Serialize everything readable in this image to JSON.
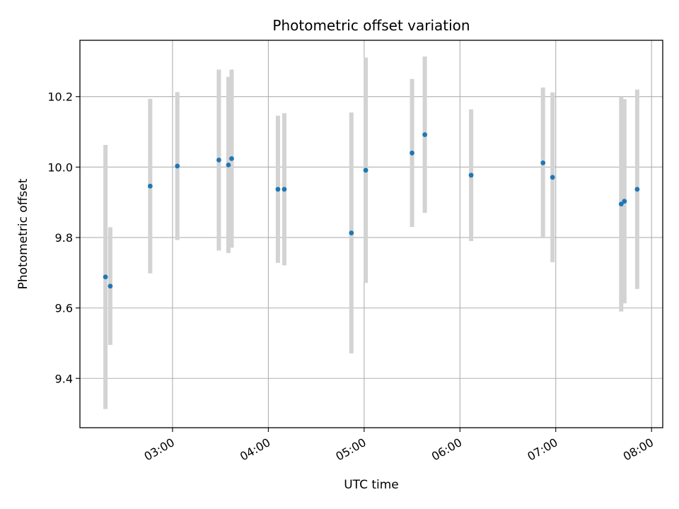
{
  "chart_data": {
    "type": "scatter",
    "title": "Photometric offset variation",
    "xlabel": "UTC time",
    "ylabel": "Photometric offset",
    "x_tick_labels": [
      "03:00",
      "04:00",
      "05:00",
      "06:00",
      "07:00",
      "08:00"
    ],
    "y_tick_labels": [
      "9.4",
      "9.6",
      "9.8",
      "10.0",
      "10.2"
    ],
    "x_ticks": [
      "03:00",
      "04:00",
      "05:00",
      "06:00",
      "07:00",
      "08:00"
    ],
    "y_ticks": [
      9.4,
      9.6,
      9.8,
      10.0,
      10.2
    ],
    "xlim": [
      "02:02",
      "08:07"
    ],
    "ylim": [
      9.26,
      10.36
    ],
    "grid": true,
    "marker_color": "#1f77b4",
    "errorbar_color": "#d3d3d3",
    "points": [
      {
        "x": "02:18",
        "y": 9.688,
        "yerr": 0.375
      },
      {
        "x": "02:21",
        "y": 9.662,
        "yerr": 0.167
      },
      {
        "x": "02:46",
        "y": 9.946,
        "yerr": 0.248
      },
      {
        "x": "03:03",
        "y": 10.003,
        "yerr": 0.21
      },
      {
        "x": "03:29",
        "y": 10.02,
        "yerr": 0.257
      },
      {
        "x": "03:35",
        "y": 10.006,
        "yerr": 0.25
      },
      {
        "x": "03:37",
        "y": 10.024,
        "yerr": 0.253
      },
      {
        "x": "04:06",
        "y": 9.937,
        "yerr": 0.209
      },
      {
        "x": "04:10",
        "y": 9.937,
        "yerr": 0.216
      },
      {
        "x": "04:52",
        "y": 9.813,
        "yerr": 0.342
      },
      {
        "x": "05:01",
        "y": 9.991,
        "yerr": 0.32
      },
      {
        "x": "05:30",
        "y": 10.04,
        "yerr": 0.21
      },
      {
        "x": "05:38",
        "y": 10.092,
        "yerr": 0.222
      },
      {
        "x": "06:07",
        "y": 9.977,
        "yerr": 0.187
      },
      {
        "x": "06:52",
        "y": 10.012,
        "yerr": 0.214
      },
      {
        "x": "06:58",
        "y": 9.971,
        "yerr": 0.241
      },
      {
        "x": "07:41",
        "y": 9.895,
        "yerr": 0.305
      },
      {
        "x": "07:43",
        "y": 9.903,
        "yerr": 0.29
      },
      {
        "x": "07:51",
        "y": 9.937,
        "yerr": 0.283
      }
    ]
  }
}
